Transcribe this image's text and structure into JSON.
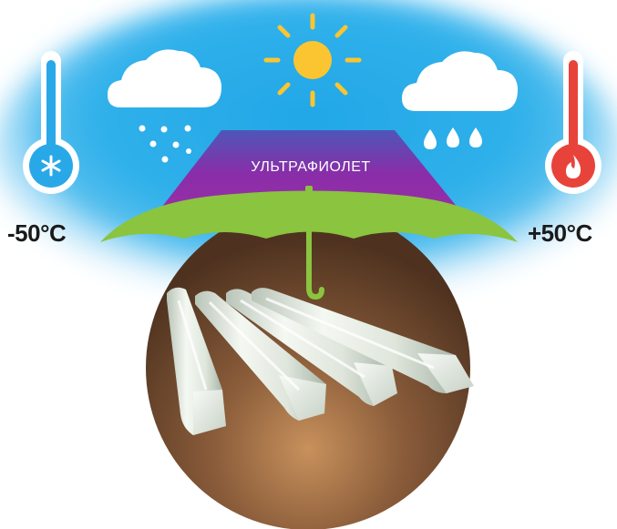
{
  "labels": {
    "temp_min": "-50°C",
    "temp_max": "+50°C",
    "uv": "УЛЬТРАФИОЛЕТ"
  },
  "icons": {
    "sun": "sun-icon",
    "snow_cloud": "snow-cloud-icon",
    "rain_cloud": "rain-cloud-icon",
    "cold_thermometer": "cold-thermometer-icon",
    "hot_thermometer": "hot-thermometer-icon",
    "umbrella": "umbrella-icon"
  },
  "colors": {
    "sky": "#2aaee8",
    "sun": "#fbc531",
    "cold": "#29a8e8",
    "hot": "#e8433a",
    "uv_band": "#8a2da8",
    "umbrella": "#8bc43f",
    "soil": "#7a5236",
    "pipes": "#e6ece4"
  }
}
